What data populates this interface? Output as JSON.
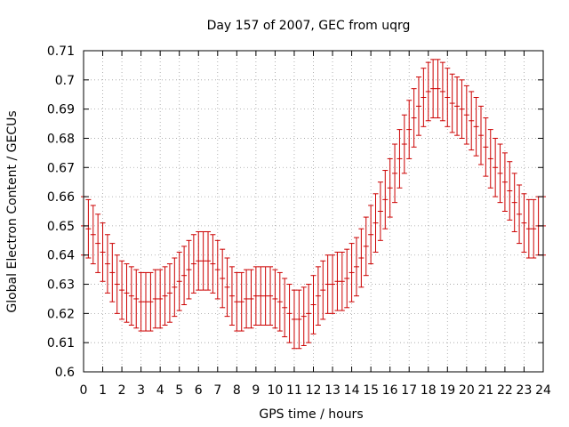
{
  "chart_data": {
    "type": "scatter",
    "title": "Day 157 of 2007, GEC from uqrg",
    "xlabel": "GPS time / hours",
    "ylabel": "Global Electron Content / GECUs",
    "xlim": [
      0,
      24
    ],
    "ylim": [
      0.6,
      0.71
    ],
    "xticks": [
      0,
      1,
      2,
      3,
      4,
      5,
      6,
      7,
      8,
      9,
      10,
      11,
      12,
      13,
      14,
      15,
      16,
      17,
      18,
      19,
      20,
      21,
      22,
      23,
      24
    ],
    "xtick_labels": [
      "0",
      "1",
      "2",
      "3",
      "4",
      "5",
      "6",
      "7",
      "8",
      "9",
      "10",
      "11",
      "12",
      "13",
      "14",
      "15",
      "16",
      "17",
      "18",
      "19",
      "20",
      "21",
      "22",
      "23",
      "24"
    ],
    "yticks": [
      0.6,
      0.61,
      0.62,
      0.63,
      0.64,
      0.65,
      0.66,
      0.67,
      0.68,
      0.69,
      0.7,
      0.71
    ],
    "ytick_labels": [
      "0.6",
      "0.61",
      "0.62",
      "0.63",
      "0.64",
      "0.65",
      "0.66",
      "0.67",
      "0.68",
      "0.69",
      "0.7",
      "0.71"
    ],
    "grid": true,
    "color": "#cc0000",
    "x": [
      0,
      0.25,
      0.5,
      0.75,
      1,
      1.25,
      1.5,
      1.75,
      2,
      2.25,
      2.5,
      2.75,
      3,
      3.25,
      3.5,
      3.75,
      4,
      4.25,
      4.5,
      4.75,
      5,
      5.25,
      5.5,
      5.75,
      6,
      6.25,
      6.5,
      6.75,
      7,
      7.25,
      7.5,
      7.75,
      8,
      8.25,
      8.5,
      8.75,
      9,
      9.25,
      9.5,
      9.75,
      10,
      10.25,
      10.5,
      10.75,
      11,
      11.25,
      11.5,
      11.75,
      12,
      12.25,
      12.5,
      12.75,
      13,
      13.25,
      13.5,
      13.75,
      14,
      14.25,
      14.5,
      14.75,
      15,
      15.25,
      15.5,
      15.75,
      16,
      16.25,
      16.5,
      16.75,
      17,
      17.25,
      17.5,
      17.75,
      18,
      18.25,
      18.5,
      18.75,
      19,
      19.25,
      19.5,
      19.75,
      20,
      20.25,
      20.5,
      20.75,
      21,
      21.25,
      21.5,
      21.75,
      22,
      22.25,
      22.5,
      22.75,
      23,
      23.25,
      23.5,
      23.75,
      24
    ],
    "y": [
      0.65,
      0.649,
      0.647,
      0.644,
      0.641,
      0.637,
      0.634,
      0.63,
      0.628,
      0.627,
      0.626,
      0.625,
      0.624,
      0.624,
      0.624,
      0.625,
      0.625,
      0.626,
      0.627,
      0.629,
      0.631,
      0.633,
      0.635,
      0.637,
      0.638,
      0.638,
      0.638,
      0.637,
      0.635,
      0.632,
      0.629,
      0.626,
      0.624,
      0.624,
      0.625,
      0.625,
      0.626,
      0.626,
      0.626,
      0.626,
      0.625,
      0.624,
      0.622,
      0.62,
      0.618,
      0.618,
      0.619,
      0.62,
      0.623,
      0.626,
      0.628,
      0.63,
      0.63,
      0.631,
      0.631,
      0.632,
      0.634,
      0.636,
      0.639,
      0.643,
      0.647,
      0.651,
      0.655,
      0.659,
      0.663,
      0.668,
      0.673,
      0.678,
      0.683,
      0.687,
      0.691,
      0.694,
      0.696,
      0.697,
      0.697,
      0.696,
      0.694,
      0.692,
      0.691,
      0.69,
      0.688,
      0.686,
      0.684,
      0.681,
      0.677,
      0.673,
      0.67,
      0.668,
      0.665,
      0.662,
      0.658,
      0.654,
      0.651,
      0.649,
      0.649,
      0.65,
      0.65
    ],
    "error": 0.01
  }
}
